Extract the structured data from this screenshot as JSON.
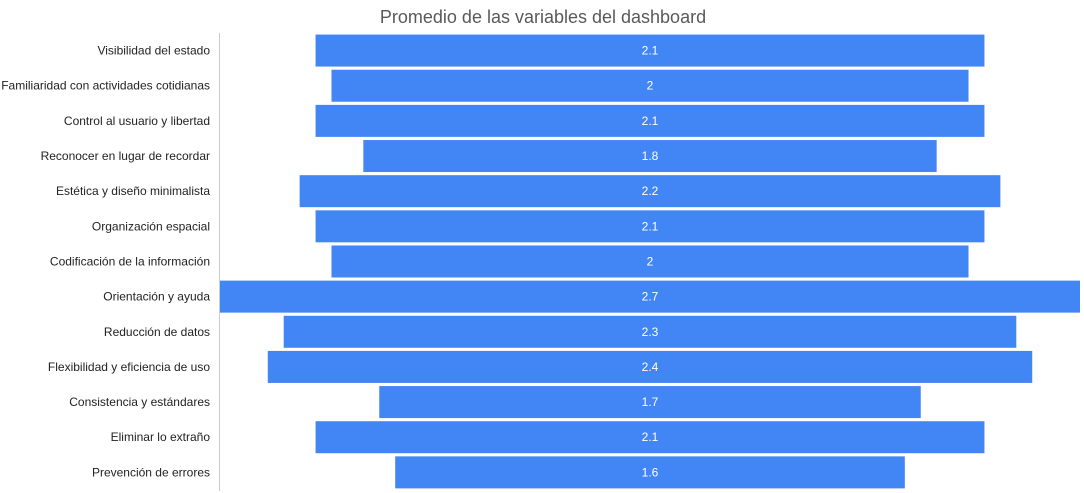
{
  "chart_data": {
    "type": "bar",
    "orientation": "horizontal",
    "centered": true,
    "title": "Promedio de las variables del dashboard",
    "xlabel": "",
    "ylabel": "",
    "categories": [
      "Visibilidad del estado",
      "Familiaridad con actividades cotidianas",
      "Control al usuario y libertad",
      "Reconocer en lugar de recordar",
      "Estética y diseño minimalista",
      "Organización espacial",
      "Codificación de la información",
      "Orientación y ayuda",
      "Reducción de datos",
      "Flexibilidad y eficiencia de uso",
      "Consistencia y estándares",
      "Eliminar lo extraño",
      "Prevención de errores"
    ],
    "values": [
      2.1,
      2,
      2.1,
      1.8,
      2.2,
      2.1,
      2,
      2.7,
      2.3,
      2.4,
      1.7,
      2.1,
      1.6
    ],
    "xlim": [
      0,
      2.7
    ],
    "grid": false,
    "legend": "none",
    "bar_color": "#4285f4"
  }
}
